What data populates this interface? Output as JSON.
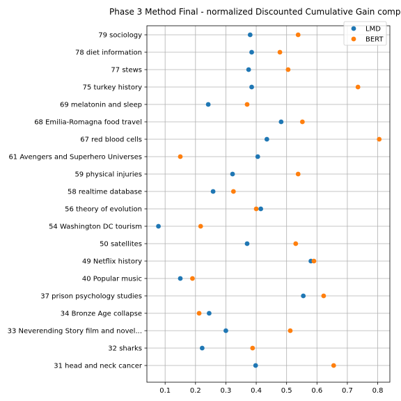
{
  "chart_data": {
    "type": "scatter",
    "title": "Phase 3 Method Final - normalized Discounted Cumulative Gain comp",
    "xlabel": "",
    "ylabel": "",
    "xlim": [
      0.04,
      0.84
    ],
    "xticks": [
      "0.1",
      "0.2",
      "0.3",
      "0.4",
      "0.5",
      "0.6",
      "0.7",
      "0.8"
    ],
    "grid": true,
    "legend_position": "top-right",
    "categories": [
      "79 sociology",
      "78 diet information",
      "77 stews",
      "75 turkey history",
      "69 melatonin and sleep",
      "68 Emilia-Romagna food travel",
      "67 red blood cells",
      "61 Avengers and Superhero Universes",
      "59 physical injuries",
      "58 realtime database",
      "56 theory of evolution",
      "54 Washington DC tourism",
      "50 satellites",
      "49 Netflix history",
      "40 Popular music",
      "37 prison psychology studies",
      "34 Bronze Age collapse",
      "33 Neverending Story film and novel...",
      "32 sharks",
      "31 head and neck cancer"
    ],
    "series": [
      {
        "name": "LMD",
        "color": "#1f77b4",
        "values": [
          0.38,
          0.385,
          0.375,
          0.385,
          0.242,
          0.482,
          0.435,
          0.405,
          0.322,
          0.258,
          0.415,
          0.078,
          0.37,
          0.58,
          0.15,
          0.555,
          0.245,
          0.3,
          0.222,
          0.398
        ]
      },
      {
        "name": "BERT",
        "color": "#ff7f0e",
        "values": [
          0.538,
          0.478,
          0.505,
          0.735,
          0.37,
          0.552,
          0.805,
          0.15,
          0.538,
          0.325,
          0.4,
          0.217,
          0.53,
          0.59,
          0.19,
          0.622,
          0.212,
          0.512,
          0.388,
          0.655
        ]
      }
    ]
  }
}
